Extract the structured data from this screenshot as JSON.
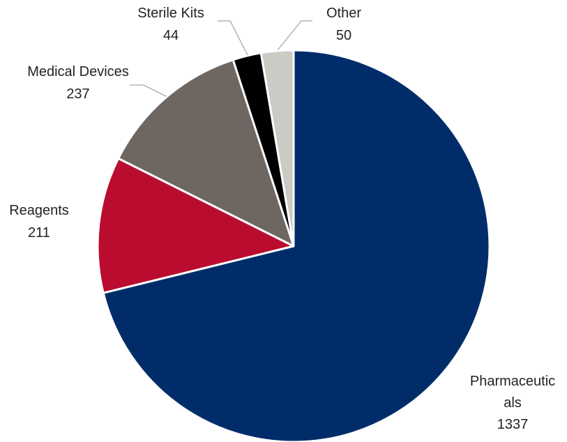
{
  "chart_data": {
    "type": "pie",
    "title": "",
    "start_angle_deg": 0,
    "direction": "clockwise",
    "legend": "none",
    "slices": [
      {
        "label": "Pharmaceuticals",
        "label_lines": [
          "Pharmaceutic",
          "als"
        ],
        "value": 1337,
        "value_text": "1337",
        "color": "#002d6a"
      },
      {
        "label": "Reagents",
        "label_lines": [
          "Reagents"
        ],
        "value": 211,
        "value_text": "211",
        "color": "#ba0c2f"
      },
      {
        "label": "Medical Devices",
        "label_lines": [
          "Medical Devices"
        ],
        "value": 237,
        "value_text": "237",
        "color": "#6e6661"
      },
      {
        "label": "Sterile Kits",
        "label_lines": [
          "Sterile Kits"
        ],
        "value": 44,
        "value_text": "44",
        "color": "#000000"
      },
      {
        "label": "Other",
        "label_lines": [
          "Other"
        ],
        "value": 50,
        "value_text": "50",
        "color": "#cbcac5"
      }
    ]
  }
}
